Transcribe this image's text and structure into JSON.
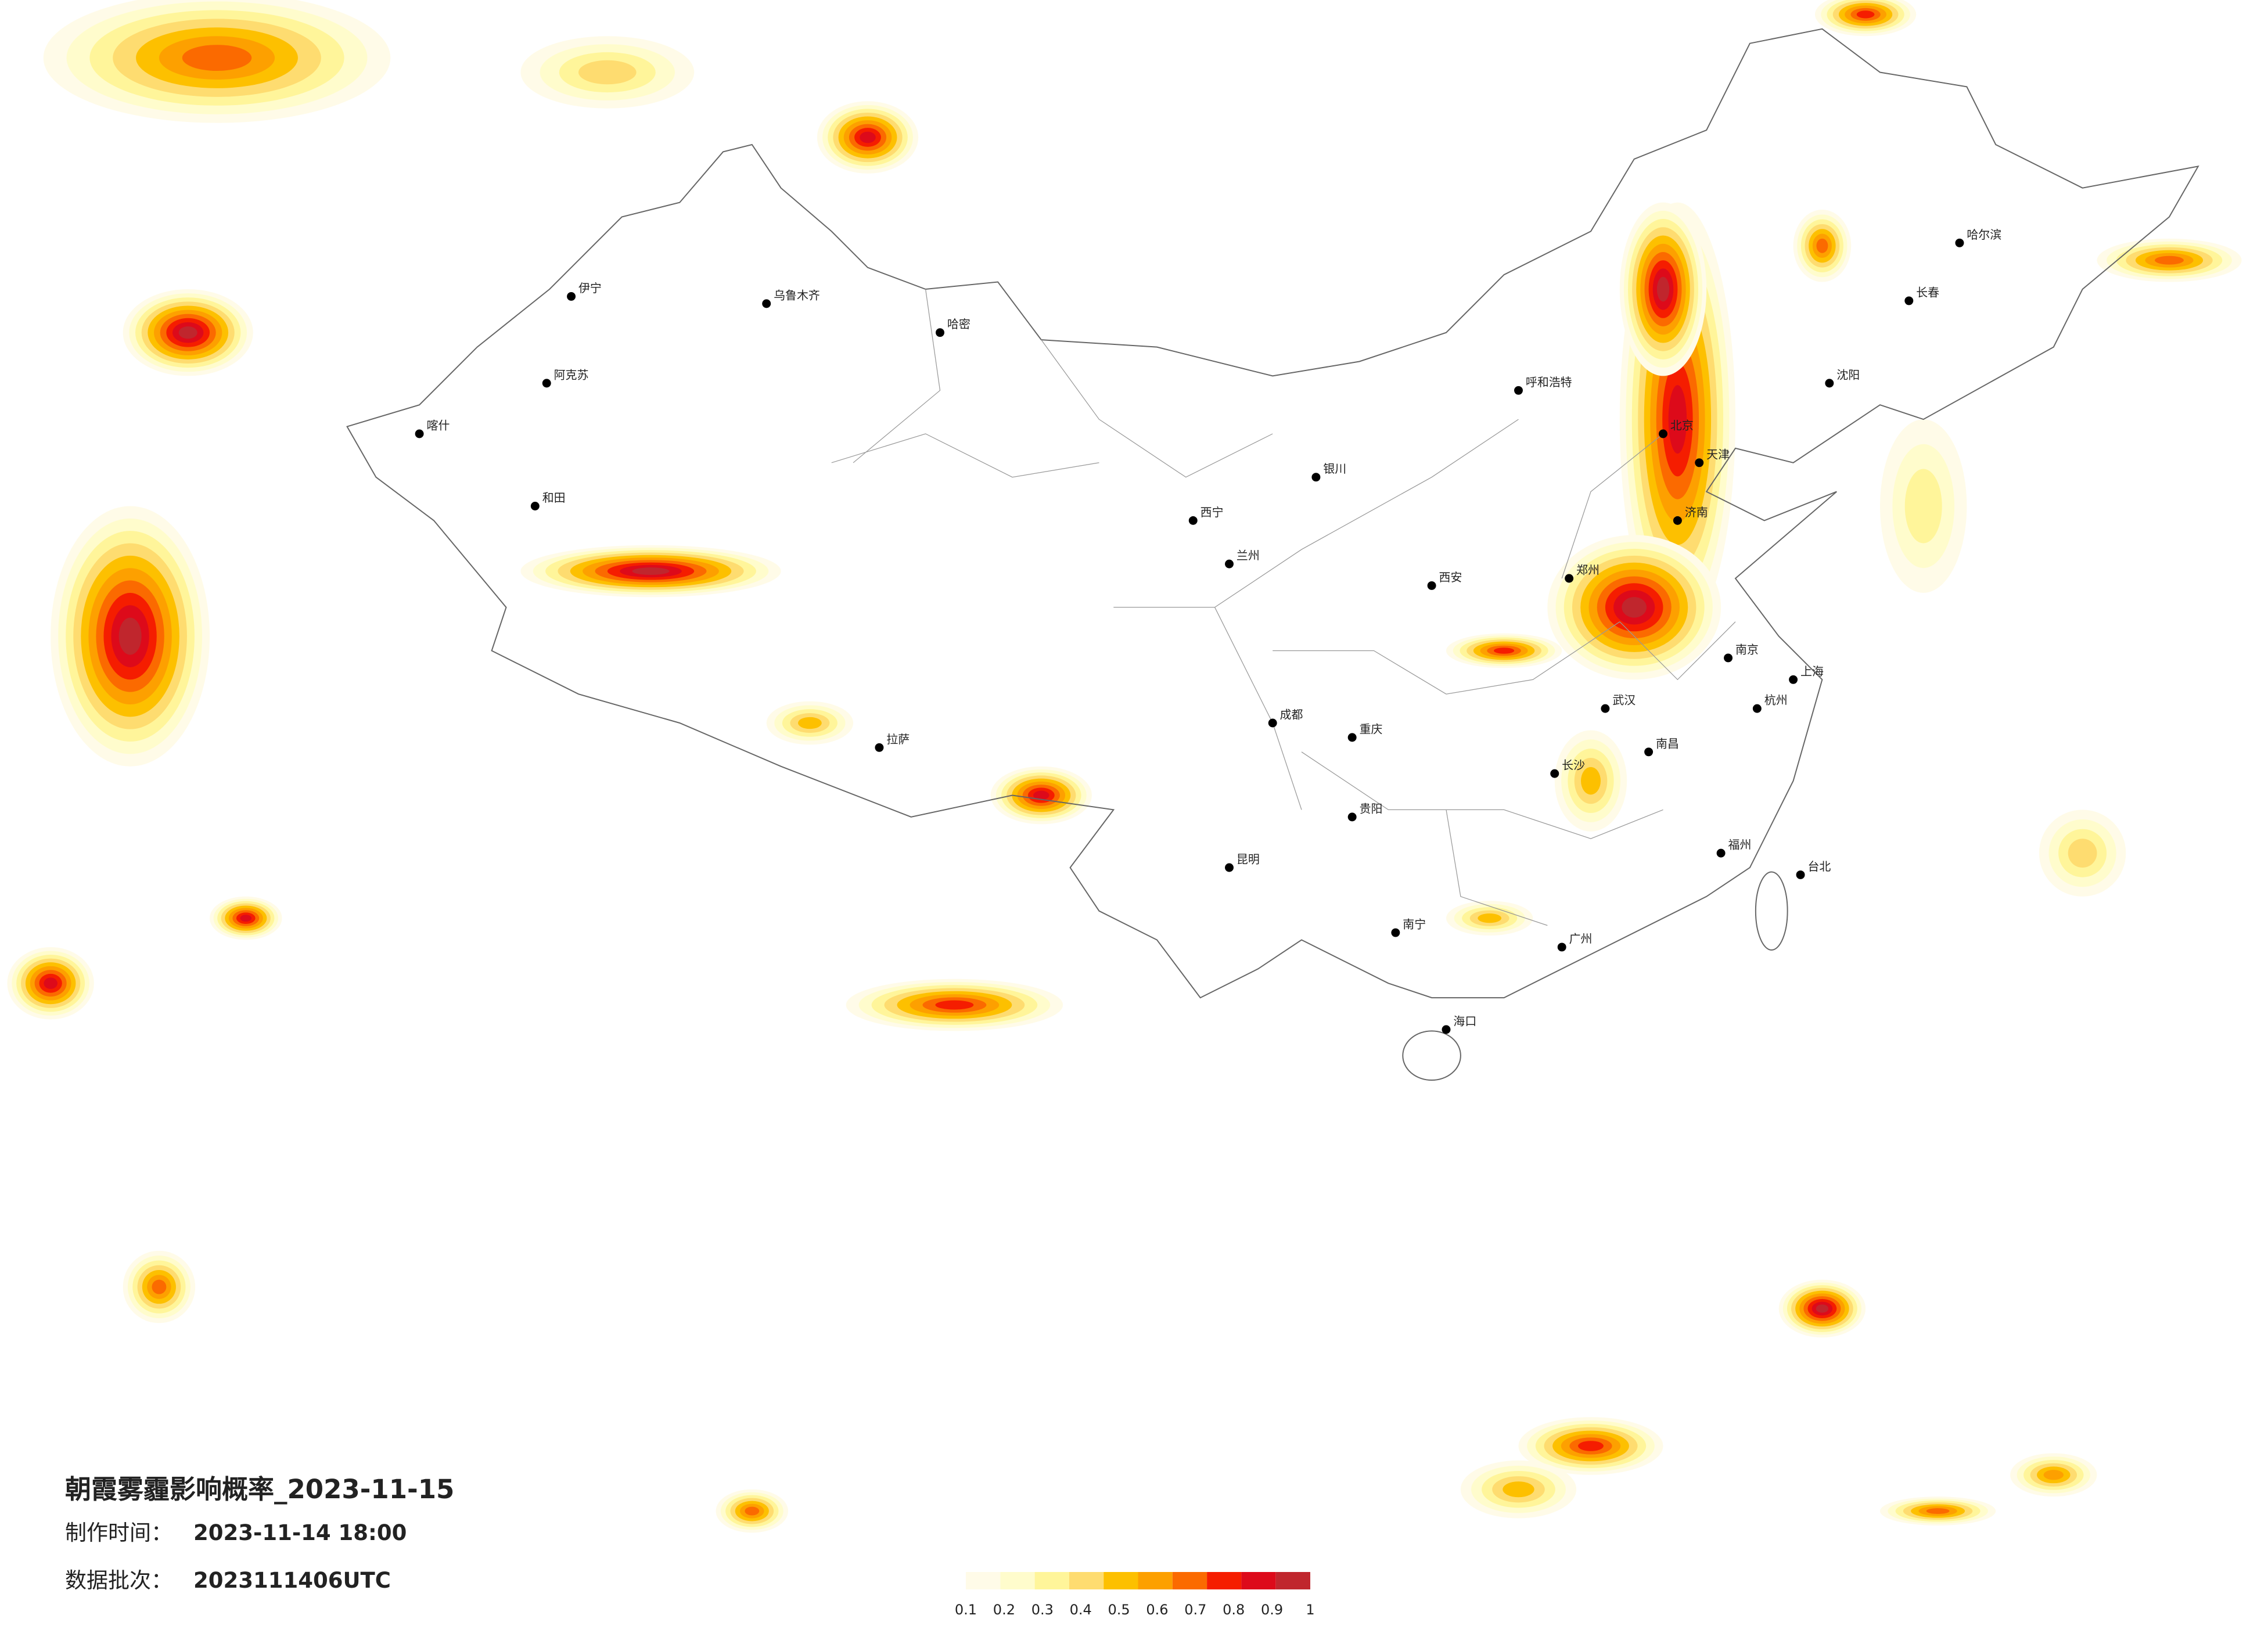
{
  "title": "朝霞雾霾影响概率_2023-11-15",
  "made_label": "制作时间：",
  "made_time": "2023-11-14 18:00",
  "batch_label": "数据批次：",
  "batch": "2023111406UTC",
  "colorbar": {
    "ticks": [
      0.1,
      0.2,
      0.3,
      0.4,
      0.5,
      0.6,
      0.7,
      0.8,
      0.9,
      1
    ],
    "colors": [
      "#fffbe8",
      "#fffccc",
      "#fff59a",
      "#fedc70",
      "#fdc000",
      "#fda000",
      "#fb6a00",
      "#f51d00",
      "#dd0a1a",
      "#c0262d"
    ]
  },
  "cities": [
    "乌鲁木齐",
    "哈密",
    "伊宁",
    "阿克苏",
    "喀什",
    "和田",
    "拉萨",
    "西宁",
    "兰州",
    "银川",
    "呼和浩特",
    "北京",
    "天津",
    "哈尔滨",
    "长春",
    "沈阳",
    "济南",
    "郑州",
    "西安",
    "成都",
    "重庆",
    "武汉",
    "南京",
    "上海",
    "杭州",
    "长沙",
    "南昌",
    "福州",
    "广州",
    "南宁",
    "昆明",
    "贵阳",
    "海口",
    "台北"
  ]
}
